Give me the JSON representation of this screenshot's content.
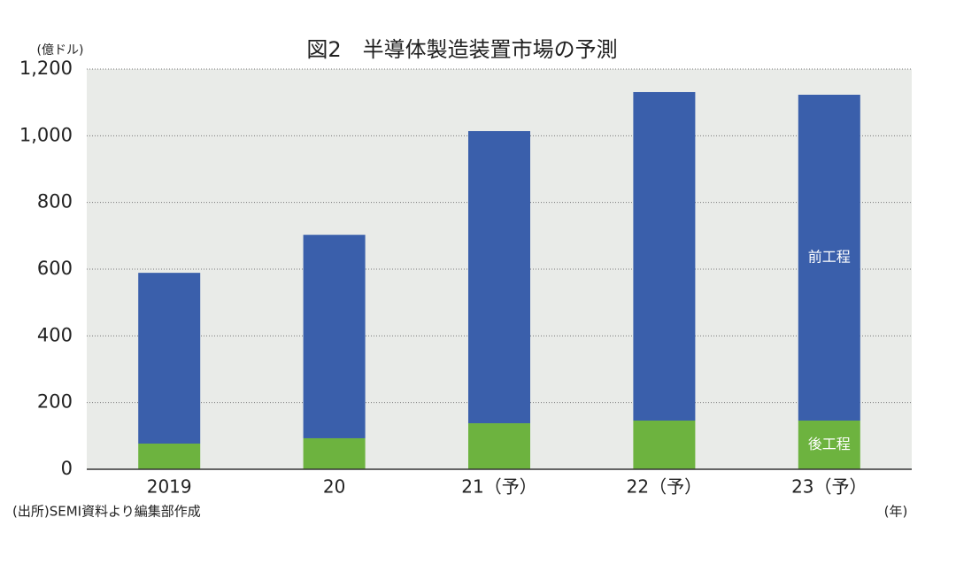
{
  "chart_data": {
    "type": "stacked_bar",
    "title": "図2　半導体製造装置市場の予測",
    "y_label": "(億ドル)",
    "x_label": "(年)",
    "source": "(出所)SEMI資料より編集部作成",
    "categories": [
      "2019",
      "20",
      "21（予）",
      "22（予）",
      "23（予）"
    ],
    "series": [
      {
        "name": "後工程",
        "color": "#6db33f",
        "values": [
          77,
          93,
          138,
          146,
          146
        ]
      },
      {
        "name": "前工程",
        "color": "#3a5fab",
        "values": [
          512,
          610,
          876,
          985,
          977
        ]
      }
    ],
    "ylim": [
      0,
      1200
    ],
    "yticks": [
      0,
      200,
      400,
      600,
      800,
      {
        "value": 1000,
        "label": "1,000"
      },
      {
        "value": 1200,
        "label": "1,200"
      }
    ],
    "grid": true
  }
}
